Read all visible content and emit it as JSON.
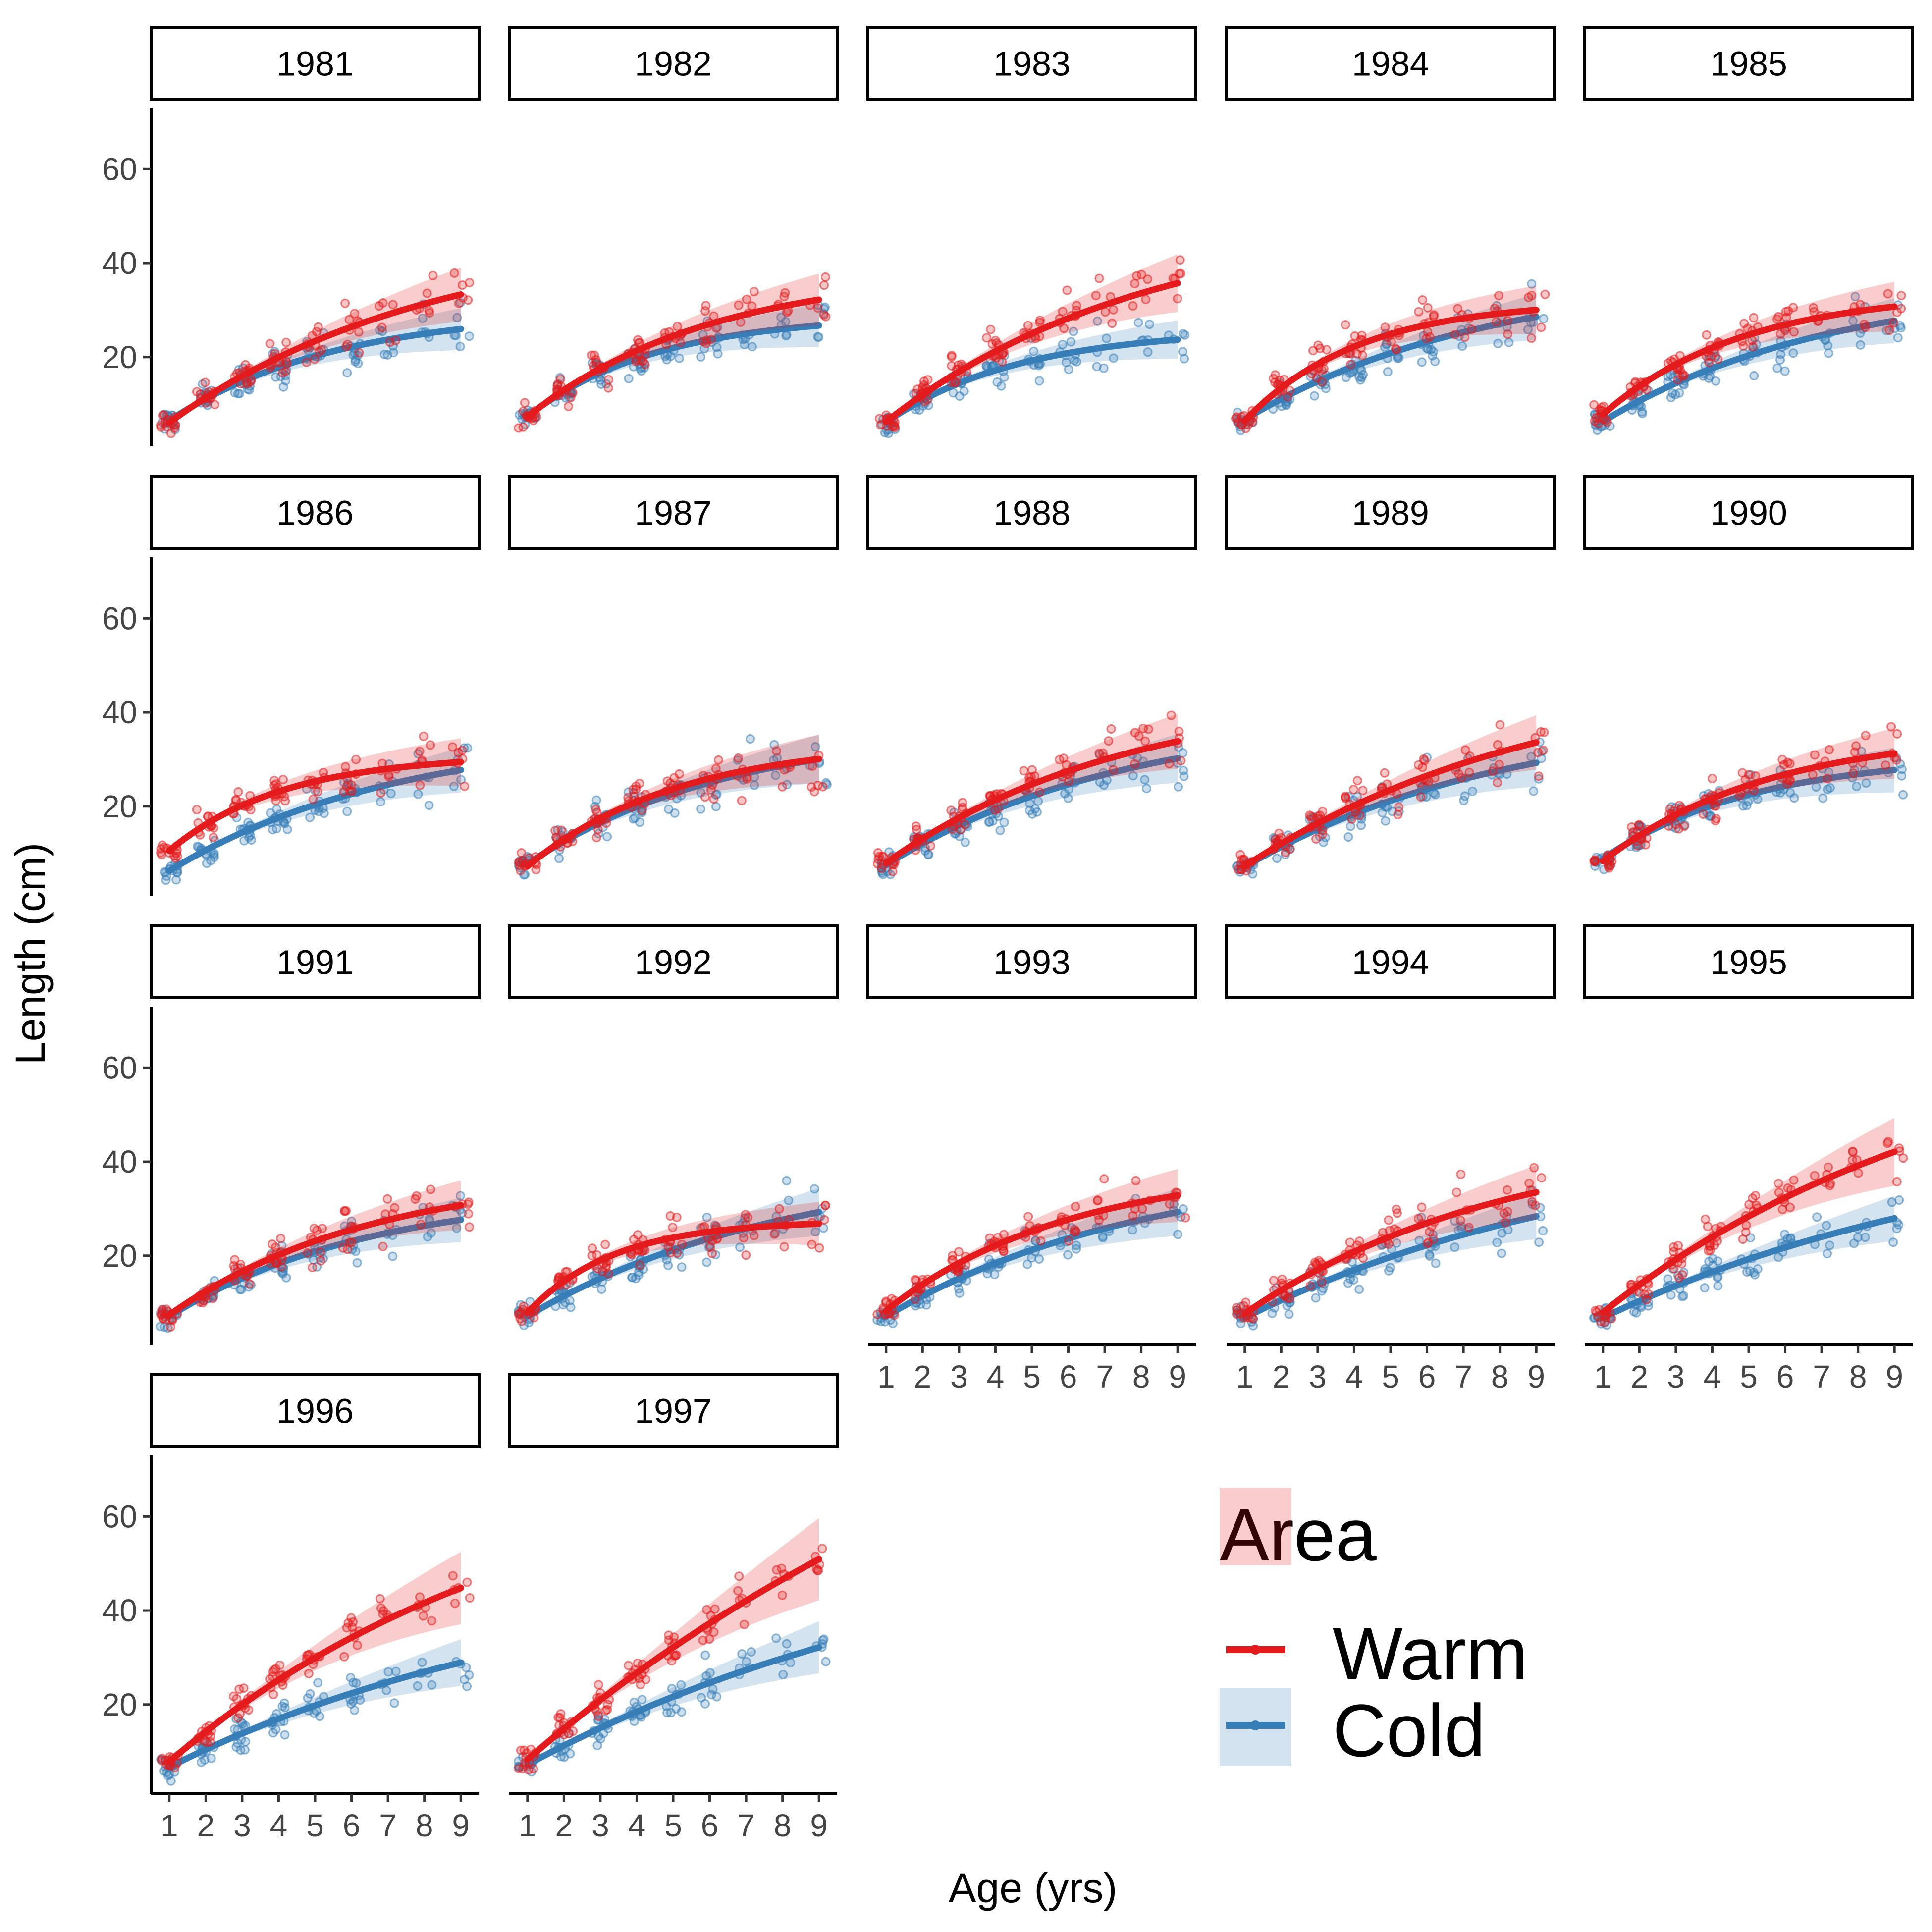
{
  "chart_data": {
    "type": "scatter",
    "xlabel": "Age (yrs)",
    "ylabel": "Length (cm)",
    "x_ticks": [
      1,
      2,
      3,
      4,
      5,
      6,
      7,
      8,
      9
    ],
    "y_ticks": [
      20,
      40,
      60
    ],
    "xlim": [
      0.5,
      9.5
    ],
    "ylim": [
      1,
      73
    ],
    "grid": false,
    "legend": {
      "title": "Area",
      "position": "bottom-right",
      "entries": [
        {
          "name": "Warm",
          "color": "#e41a1c"
        },
        {
          "name": "Cold",
          "color": "#377eb8"
        }
      ]
    },
    "band_half_width": {
      "Warm": 0.045,
      "Cold": 0.045
    },
    "panels": [
      {
        "year": "1981",
        "curves": {
          "Warm": {
            "Linf": 46.5,
            "k": 0.14,
            "t0": 0.0
          },
          "Cold": {
            "Linf": 30.0,
            "k": 0.22,
            "t0": -0.1
          }
        }
      },
      {
        "year": "1982",
        "curves": {
          "Warm": {
            "Linf": 38.5,
            "k": 0.2,
            "t0": -0.05
          },
          "Cold": {
            "Linf": 29.0,
            "k": 0.28,
            "t0": -0.05
          }
        }
      },
      {
        "year": "1983",
        "curves": {
          "Warm": {
            "Linf": 50.0,
            "k": 0.14,
            "t0": 0.05
          },
          "Cold": {
            "Linf": 26.0,
            "k": 0.27,
            "t0": 0.0
          }
        }
      },
      {
        "year": "1984",
        "curves": {
          "Warm": {
            "Linf": 32.0,
            "k": 0.32,
            "t0": 0.3
          },
          "Cold": {
            "Linf": 38.0,
            "k": 0.15,
            "t0": -0.3
          }
        }
      },
      {
        "year": "1985",
        "curves": {
          "Warm": {
            "Linf": 34.0,
            "k": 0.26,
            "t0": 0.0
          },
          "Cold": {
            "Linf": 36.0,
            "k": 0.16,
            "t0": -0.2
          }
        }
      },
      {
        "year": "1986",
        "curves": {
          "Warm": {
            "Linf": 31.0,
            "k": 0.32,
            "t0": -0.3
          },
          "Cold": {
            "Linf": 36.0,
            "k": 0.16,
            "t0": -0.2
          }
        }
      },
      {
        "year": "1987",
        "curves": {
          "Warm": {
            "Linf": 34.0,
            "k": 0.24,
            "t0": 0.0
          },
          "Cold": {
            "Linf": 37.0,
            "k": 0.18,
            "t0": -0.3
          }
        }
      },
      {
        "year": "1988",
        "curves": {
          "Warm": {
            "Linf": 45.0,
            "k": 0.15,
            "t0": -0.3
          },
          "Cold": {
            "Linf": 40.0,
            "k": 0.15,
            "t0": -0.4
          }
        }
      },
      {
        "year": "1989",
        "curves": {
          "Warm": {
            "Linf": 50.0,
            "k": 0.12,
            "t0": -0.3
          },
          "Cold": {
            "Linf": 40.0,
            "k": 0.14,
            "t0": -0.4
          }
        }
      },
      {
        "year": "1990",
        "curves": {
          "Warm": {
            "Linf": 36.0,
            "k": 0.22,
            "t0": -0.2
          },
          "Cold": {
            "Linf": 31.0,
            "k": 0.24,
            "t0": -0.4
          }
        }
      },
      {
        "year": "1991",
        "curves": {
          "Warm": {
            "Linf": 38.0,
            "k": 0.18,
            "t0": -0.2
          },
          "Cold": {
            "Linf": 34.0,
            "k": 0.18,
            "t0": -0.3
          }
        }
      },
      {
        "year": "1992",
        "curves": {
          "Warm": {
            "Linf": 27.5,
            "k": 0.42,
            "t0": 0.2
          },
          "Cold": {
            "Linf": 40.0,
            "k": 0.14,
            "t0": -0.4
          }
        }
      },
      {
        "year": "1993",
        "curves": {
          "Warm": {
            "Linf": 39.0,
            "k": 0.2,
            "t0": -0.2
          },
          "Cold": {
            "Linf": 40.0,
            "k": 0.14,
            "t0": -0.4
          }
        }
      },
      {
        "year": "1994",
        "curves": {
          "Warm": {
            "Linf": 46.0,
            "k": 0.14,
            "t0": -0.3
          },
          "Cold": {
            "Linf": 46.0,
            "k": 0.1,
            "t0": -0.6
          }
        }
      },
      {
        "year": "1995",
        "curves": {
          "Warm": {
            "Linf": 70.0,
            "k": 0.1,
            "t0": -0.2
          },
          "Cold": {
            "Linf": 48.0,
            "k": 0.09,
            "t0": -0.7
          }
        }
      },
      {
        "year": "1996",
        "curves": {
          "Warm": {
            "Linf": 75.0,
            "k": 0.1,
            "t0": -0.1
          },
          "Cold": {
            "Linf": 50.0,
            "k": 0.09,
            "t0": -0.6
          }
        }
      },
      {
        "year": "1997",
        "curves": {
          "Warm": {
            "Linf": 120.0,
            "k": 0.06,
            "t0": -0.2
          },
          "Cold": {
            "Linf": 60.0,
            "k": 0.08,
            "t0": -0.6
          }
        }
      }
    ]
  }
}
